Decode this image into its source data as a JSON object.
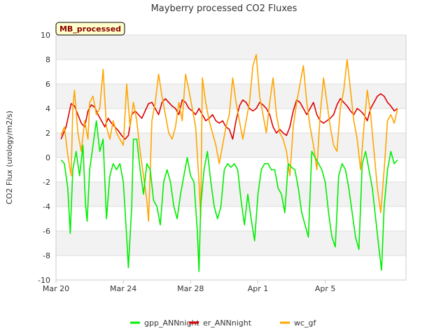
{
  "chart_data": {
    "type": "line",
    "title": "Mayberry processed CO2 Fluxes",
    "ylabel": "CO2 Flux (urology/m2/s)",
    "xlabel": "",
    "badge": "MB_processed",
    "ylim": [
      -10,
      10
    ],
    "yticks": [
      "10",
      "8",
      "6",
      "4",
      "2",
      "0",
      "-2",
      "-4",
      "-6",
      "-8",
      "-10"
    ],
    "xlim": [
      0,
      20.8
    ],
    "xticks": [
      {
        "label": "Mar 20",
        "day": 0
      },
      {
        "label": "Mar 24",
        "day": 4
      },
      {
        "label": "Mar 28",
        "day": 8
      },
      {
        "label": "Apr 1",
        "day": 12
      },
      {
        "label": "Apr 5",
        "day": 16
      }
    ],
    "grid": true,
    "legend_position": "bottom",
    "series": [
      {
        "name": "gpp_ANNnight",
        "color": "#00ee00",
        "points": [
          [
            0.3,
            -0.2
          ],
          [
            0.5,
            -0.5
          ],
          [
            0.7,
            -2.5
          ],
          [
            0.85,
            -6.2
          ],
          [
            1.0,
            -1
          ],
          [
            1.2,
            0.5
          ],
          [
            1.4,
            -1.5
          ],
          [
            1.6,
            1.0
          ],
          [
            1.75,
            -3.8
          ],
          [
            1.85,
            -5.2
          ],
          [
            2.0,
            -1
          ],
          [
            2.2,
            1.0
          ],
          [
            2.4,
            3.0
          ],
          [
            2.6,
            0.5
          ],
          [
            2.8,
            1.5
          ],
          [
            3.0,
            -5.0
          ],
          [
            3.2,
            -1.5
          ],
          [
            3.4,
            -0.5
          ],
          [
            3.6,
            -1.0
          ],
          [
            3.8,
            -0.5
          ],
          [
            4.0,
            -2.0
          ],
          [
            4.2,
            -6.5
          ],
          [
            4.3,
            -9.0
          ],
          [
            4.5,
            -4
          ],
          [
            4.6,
            1.5
          ],
          [
            4.8,
            1.5
          ],
          [
            5.0,
            -1
          ],
          [
            5.2,
            -3
          ],
          [
            5.4,
            -0.5
          ],
          [
            5.6,
            -1
          ],
          [
            5.8,
            -3.5
          ],
          [
            6.0,
            -4
          ],
          [
            6.2,
            -5.5
          ],
          [
            6.4,
            -2
          ],
          [
            6.6,
            -1
          ],
          [
            6.8,
            -2
          ],
          [
            7.0,
            -4
          ],
          [
            7.2,
            -5
          ],
          [
            7.4,
            -3
          ],
          [
            7.6,
            -1.5
          ],
          [
            7.8,
            0
          ],
          [
            8.0,
            -1.5
          ],
          [
            8.2,
            -2
          ],
          [
            8.4,
            -6
          ],
          [
            8.5,
            -9.3
          ],
          [
            8.6,
            -4
          ],
          [
            8.8,
            -1
          ],
          [
            9.0,
            0.5
          ],
          [
            9.2,
            -2
          ],
          [
            9.4,
            -4
          ],
          [
            9.6,
            -5
          ],
          [
            9.8,
            -4
          ],
          [
            10.0,
            -1
          ],
          [
            10.2,
            -0.5
          ],
          [
            10.4,
            -0.8
          ],
          [
            10.6,
            -0.5
          ],
          [
            10.8,
            -1.0
          ],
          [
            11.0,
            -3.5
          ],
          [
            11.2,
            -5.5
          ],
          [
            11.4,
            -3
          ],
          [
            11.6,
            -5
          ],
          [
            11.8,
            -6.8
          ],
          [
            12.0,
            -3
          ],
          [
            12.2,
            -1
          ],
          [
            12.4,
            -0.5
          ],
          [
            12.6,
            -0.5
          ],
          [
            12.8,
            -1
          ],
          [
            13.0,
            -1
          ],
          [
            13.2,
            -2.5
          ],
          [
            13.4,
            -3
          ],
          [
            13.6,
            -4.5
          ],
          [
            13.8,
            -0.5
          ],
          [
            14.0,
            -0.8
          ],
          [
            14.2,
            -1
          ],
          [
            14.4,
            -2.5
          ],
          [
            14.6,
            -4.5
          ],
          [
            14.8,
            -5.5
          ],
          [
            15.0,
            -6.5
          ],
          [
            15.2,
            0.5
          ],
          [
            15.4,
            0
          ],
          [
            15.6,
            -0.5
          ],
          [
            15.8,
            -1.0
          ],
          [
            16.0,
            -2
          ],
          [
            16.2,
            -4.5
          ],
          [
            16.4,
            -6.5
          ],
          [
            16.6,
            -7.3
          ],
          [
            16.8,
            -1.5
          ],
          [
            17.0,
            -0.5
          ],
          [
            17.2,
            -1
          ],
          [
            17.4,
            -2.5
          ],
          [
            17.6,
            -4.5
          ],
          [
            17.8,
            -6.5
          ],
          [
            18.0,
            -7.5
          ],
          [
            18.2,
            -0.5
          ],
          [
            18.4,
            0.5
          ],
          [
            18.6,
            -1
          ],
          [
            18.8,
            -2.5
          ],
          [
            19.0,
            -5
          ],
          [
            19.2,
            -7.5
          ],
          [
            19.35,
            -9.2
          ],
          [
            19.5,
            -4
          ],
          [
            19.7,
            -1
          ],
          [
            19.9,
            0.5
          ],
          [
            20.1,
            -0.5
          ],
          [
            20.3,
            -0.2
          ]
        ]
      },
      {
        "name": "er_ANNnight",
        "color": "#dd0000",
        "points": [
          [
            0.3,
            1.5
          ],
          [
            0.6,
            2.5
          ],
          [
            0.9,
            4.4
          ],
          [
            1.1,
            4.2
          ],
          [
            1.3,
            3.5
          ],
          [
            1.5,
            2.8
          ],
          [
            1.7,
            2.5
          ],
          [
            1.9,
            3.8
          ],
          [
            2.1,
            4.3
          ],
          [
            2.3,
            4.1
          ],
          [
            2.5,
            3.5
          ],
          [
            2.7,
            3.0
          ],
          [
            2.9,
            2.5
          ],
          [
            3.1,
            3.2
          ],
          [
            3.3,
            2.8
          ],
          [
            3.5,
            2.5
          ],
          [
            3.7,
            2.2
          ],
          [
            3.9,
            1.8
          ],
          [
            4.1,
            1.5
          ],
          [
            4.3,
            1.8
          ],
          [
            4.5,
            3.5
          ],
          [
            4.7,
            3.8
          ],
          [
            4.9,
            3.5
          ],
          [
            5.1,
            3.2
          ],
          [
            5.3,
            3.8
          ],
          [
            5.5,
            4.4
          ],
          [
            5.7,
            4.5
          ],
          [
            5.9,
            4.0
          ],
          [
            6.1,
            3.5
          ],
          [
            6.3,
            4.5
          ],
          [
            6.5,
            4.8
          ],
          [
            6.7,
            4.5
          ],
          [
            6.9,
            4.2
          ],
          [
            7.1,
            4.0
          ],
          [
            7.3,
            3.5
          ],
          [
            7.5,
            4.7
          ],
          [
            7.7,
            4.5
          ],
          [
            7.9,
            4.0
          ],
          [
            8.1,
            3.8
          ],
          [
            8.3,
            3.5
          ],
          [
            8.5,
            4.0
          ],
          [
            8.7,
            3.5
          ],
          [
            8.9,
            3.0
          ],
          [
            9.1,
            3.2
          ],
          [
            9.3,
            3.5
          ],
          [
            9.5,
            3.0
          ],
          [
            9.7,
            2.8
          ],
          [
            9.9,
            3.0
          ],
          [
            10.1,
            2.5
          ],
          [
            10.3,
            2.3
          ],
          [
            10.5,
            1.5
          ],
          [
            10.7,
            3.0
          ],
          [
            10.9,
            4.2
          ],
          [
            11.1,
            4.7
          ],
          [
            11.3,
            4.5
          ],
          [
            11.5,
            4.0
          ],
          [
            11.7,
            3.8
          ],
          [
            11.9,
            4.0
          ],
          [
            12.1,
            4.5
          ],
          [
            12.3,
            4.3
          ],
          [
            12.5,
            4.0
          ],
          [
            12.7,
            3.5
          ],
          [
            12.9,
            2.5
          ],
          [
            13.1,
            2.0
          ],
          [
            13.3,
            2.3
          ],
          [
            13.5,
            2.0
          ],
          [
            13.7,
            1.8
          ],
          [
            13.9,
            2.5
          ],
          [
            14.1,
            3.8
          ],
          [
            14.3,
            4.7
          ],
          [
            14.5,
            4.5
          ],
          [
            14.7,
            4.0
          ],
          [
            14.9,
            3.5
          ],
          [
            15.1,
            4.0
          ],
          [
            15.3,
            4.5
          ],
          [
            15.5,
            3.5
          ],
          [
            15.7,
            3.0
          ],
          [
            15.9,
            2.8
          ],
          [
            16.1,
            3.0
          ],
          [
            16.3,
            3.2
          ],
          [
            16.5,
            3.5
          ],
          [
            16.7,
            4.3
          ],
          [
            16.9,
            4.8
          ],
          [
            17.1,
            4.5
          ],
          [
            17.3,
            4.2
          ],
          [
            17.5,
            3.8
          ],
          [
            17.7,
            3.5
          ],
          [
            17.9,
            4.0
          ],
          [
            18.1,
            3.8
          ],
          [
            18.3,
            3.5
          ],
          [
            18.5,
            3.0
          ],
          [
            18.7,
            4.0
          ],
          [
            18.9,
            4.5
          ],
          [
            19.1,
            5.0
          ],
          [
            19.3,
            5.2
          ],
          [
            19.5,
            5.0
          ],
          [
            19.7,
            4.5
          ],
          [
            19.9,
            4.2
          ],
          [
            20.1,
            3.8
          ],
          [
            20.3,
            4.0
          ]
        ]
      },
      {
        "name": "wc_gf",
        "color": "#ffa500",
        "points": [
          [
            0.3,
            1.8
          ],
          [
            0.5,
            2.5
          ],
          [
            0.7,
            0.2
          ],
          [
            0.9,
            -1.5
          ],
          [
            1.0,
            4.0
          ],
          [
            1.1,
            5.5
          ],
          [
            1.3,
            2.0
          ],
          [
            1.5,
            0.5
          ],
          [
            1.7,
            3.0
          ],
          [
            1.9,
            1.5
          ],
          [
            2.0,
            4.5
          ],
          [
            2.2,
            5.0
          ],
          [
            2.4,
            3.5
          ],
          [
            2.6,
            4.0
          ],
          [
            2.8,
            7.2
          ],
          [
            3.0,
            2.5
          ],
          [
            3.2,
            1.5
          ],
          [
            3.4,
            3.0
          ],
          [
            3.6,
            2.0
          ],
          [
            3.8,
            1.5
          ],
          [
            4.0,
            1.0
          ],
          [
            4.2,
            6.0
          ],
          [
            4.4,
            2.5
          ],
          [
            4.6,
            4.5
          ],
          [
            4.8,
            3.0
          ],
          [
            5.0,
            0.5
          ],
          [
            5.2,
            -1.5
          ],
          [
            5.4,
            -3.5
          ],
          [
            5.5,
            -5.2
          ],
          [
            5.7,
            3.0
          ],
          [
            5.9,
            4.5
          ],
          [
            6.1,
            6.8
          ],
          [
            6.3,
            5.0
          ],
          [
            6.5,
            3.5
          ],
          [
            6.7,
            2.0
          ],
          [
            6.9,
            1.5
          ],
          [
            7.1,
            2.5
          ],
          [
            7.3,
            4.5
          ],
          [
            7.5,
            3.0
          ],
          [
            7.7,
            6.8
          ],
          [
            7.9,
            5.5
          ],
          [
            8.1,
            4.0
          ],
          [
            8.3,
            2.5
          ],
          [
            8.5,
            -2.0
          ],
          [
            8.6,
            -5.0
          ],
          [
            8.7,
            6.5
          ],
          [
            8.9,
            4.5
          ],
          [
            9.1,
            3.0
          ],
          [
            9.3,
            2.0
          ],
          [
            9.5,
            1.0
          ],
          [
            9.7,
            -0.5
          ],
          [
            9.9,
            1.0
          ],
          [
            10.1,
            2.5
          ],
          [
            10.3,
            3.5
          ],
          [
            10.5,
            6.5
          ],
          [
            10.7,
            4.5
          ],
          [
            10.9,
            3.0
          ],
          [
            11.1,
            1.5
          ],
          [
            11.3,
            3.0
          ],
          [
            11.5,
            4.5
          ],
          [
            11.7,
            7.5
          ],
          [
            11.9,
            8.4
          ],
          [
            12.1,
            5.0
          ],
          [
            12.3,
            3.5
          ],
          [
            12.5,
            2.0
          ],
          [
            12.7,
            4.5
          ],
          [
            12.9,
            6.5
          ],
          [
            13.1,
            3.5
          ],
          [
            13.3,
            2.0
          ],
          [
            13.5,
            1.5
          ],
          [
            13.7,
            0.5
          ],
          [
            13.9,
            -1.5
          ],
          [
            14.1,
            2.5
          ],
          [
            14.3,
            4.5
          ],
          [
            14.5,
            6.0
          ],
          [
            14.7,
            7.5
          ],
          [
            14.9,
            4.5
          ],
          [
            15.1,
            2.5
          ],
          [
            15.3,
            1.0
          ],
          [
            15.5,
            -1.0
          ],
          [
            15.7,
            3.5
          ],
          [
            15.9,
            6.5
          ],
          [
            16.1,
            4.5
          ],
          [
            16.3,
            2.5
          ],
          [
            16.5,
            1.0
          ],
          [
            16.7,
            0.5
          ],
          [
            16.9,
            4.0
          ],
          [
            17.1,
            5.5
          ],
          [
            17.3,
            8.0
          ],
          [
            17.5,
            5.5
          ],
          [
            17.7,
            3.0
          ],
          [
            17.9,
            1.5
          ],
          [
            18.1,
            -1.0
          ],
          [
            18.3,
            2.5
          ],
          [
            18.5,
            5.5
          ],
          [
            18.7,
            3.5
          ],
          [
            18.9,
            0.5
          ],
          [
            19.1,
            -2.5
          ],
          [
            19.3,
            -4.5
          ],
          [
            19.5,
            -1.0
          ],
          [
            19.7,
            3.0
          ],
          [
            19.9,
            3.5
          ],
          [
            20.1,
            2.8
          ],
          [
            20.3,
            4.0
          ]
        ]
      }
    ]
  }
}
